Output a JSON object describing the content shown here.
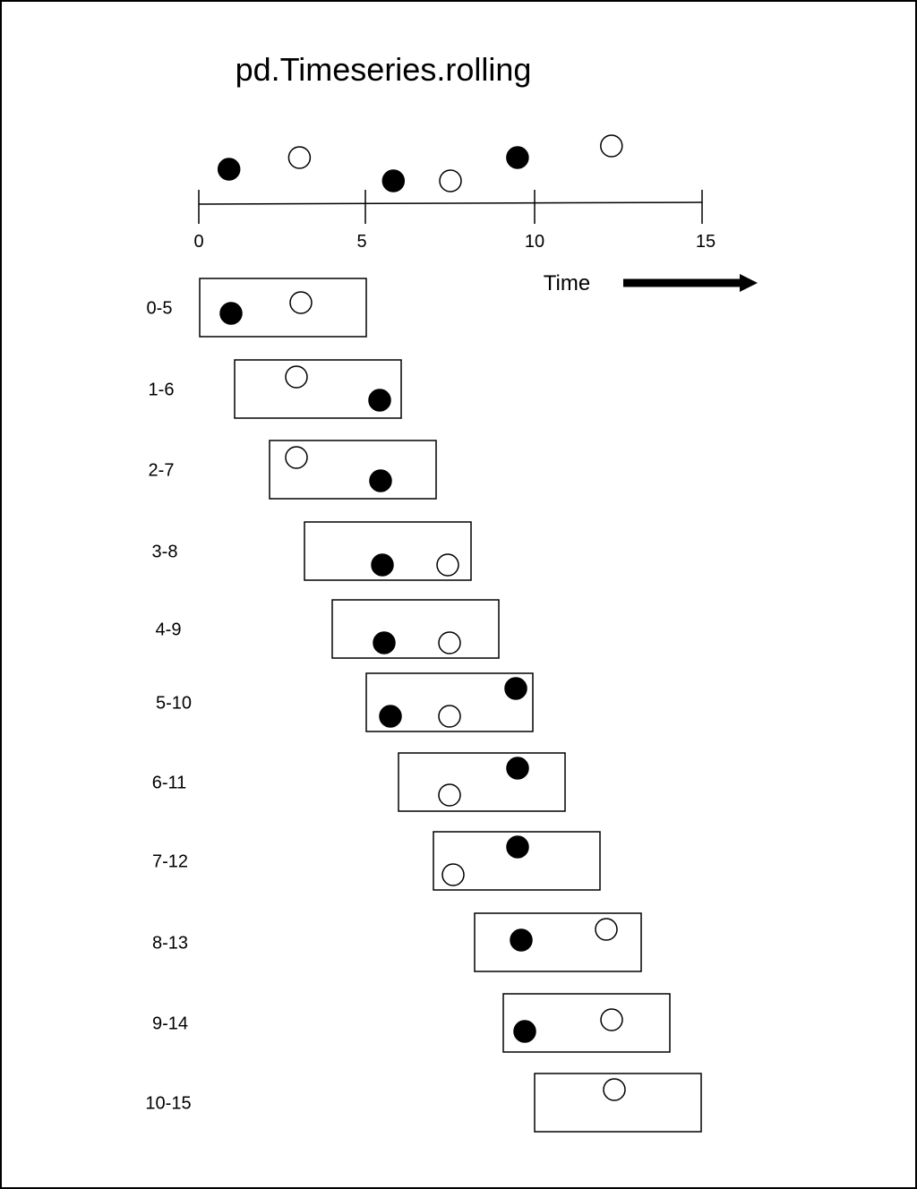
{
  "title": "pd.Timeseries.rolling",
  "axis": {
    "ticks": [
      "0",
      "5",
      "10",
      "15"
    ],
    "label": "Time"
  },
  "top_points": [
    {
      "t": 0.9,
      "fill": "black",
      "level": "mid"
    },
    {
      "t": 3.0,
      "fill": "white",
      "level": "high"
    },
    {
      "t": 5.8,
      "fill": "black",
      "level": "low"
    },
    {
      "t": 7.5,
      "fill": "white",
      "level": "low"
    },
    {
      "t": 9.5,
      "fill": "black",
      "level": "high"
    },
    {
      "t": 12.3,
      "fill": "white",
      "level": "top"
    }
  ],
  "windows": [
    {
      "label": "0-5"
    },
    {
      "label": "1-6"
    },
    {
      "label": "2-7"
    },
    {
      "label": "3-8"
    },
    {
      "label": "4-9"
    },
    {
      "label": "5-10"
    },
    {
      "label": "6-11"
    },
    {
      "label": "7-12"
    },
    {
      "label": "8-13"
    },
    {
      "label": "9-14"
    },
    {
      "label": "10-15"
    }
  ],
  "colors": {
    "ink": "#000000",
    "paper": "#ffffff"
  }
}
